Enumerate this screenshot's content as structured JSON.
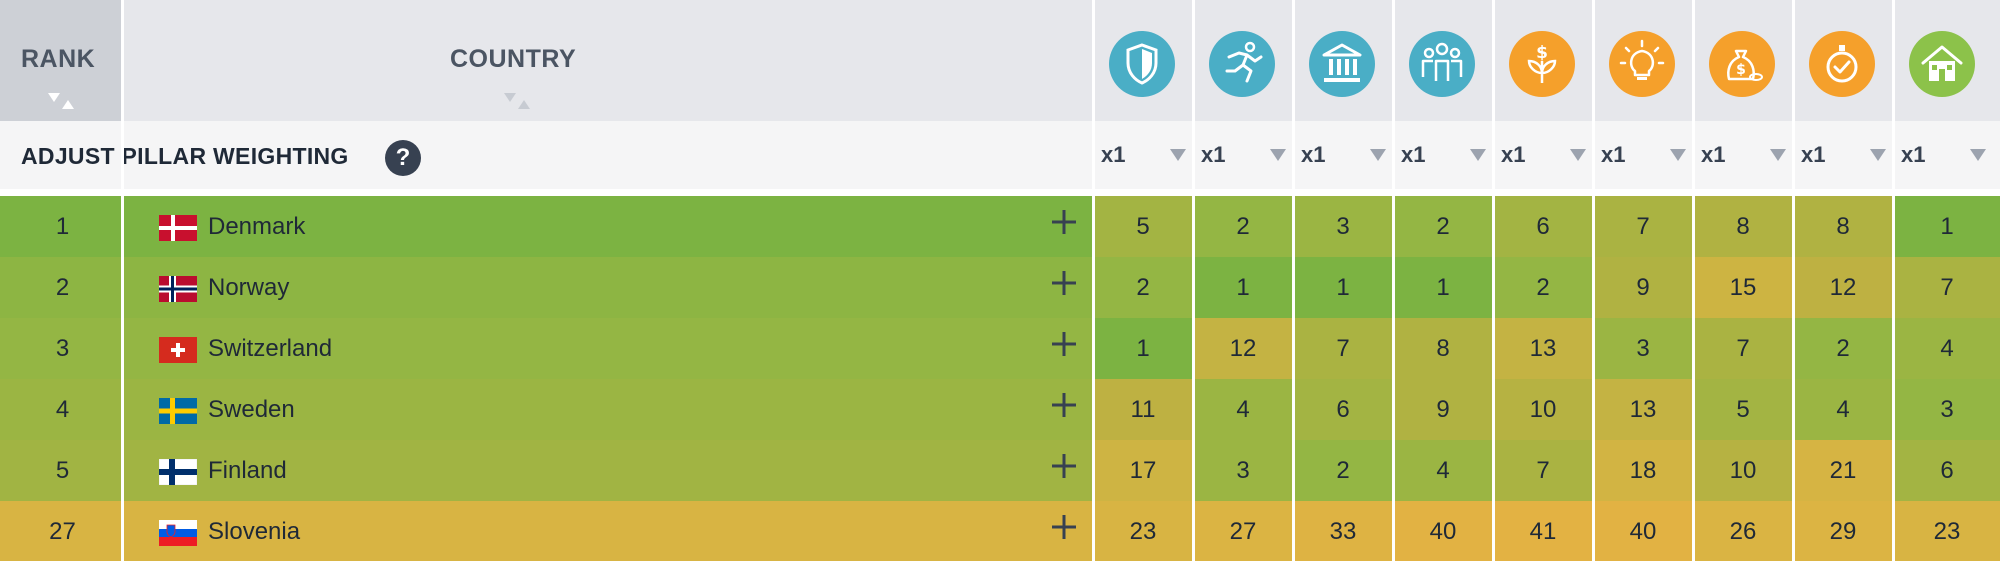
{
  "header": {
    "rank_label": "RANK",
    "country_label": "COUNTRY",
    "pillars": [
      {
        "icon": "shield-icon",
        "color": "#4aaec6"
      },
      {
        "icon": "running-person-icon",
        "color": "#4aaec6"
      },
      {
        "icon": "government-building-icon",
        "color": "#4aaec6"
      },
      {
        "icon": "people-group-icon",
        "color": "#4aaec6"
      },
      {
        "icon": "money-plant-icon",
        "color": "#f5a02b"
      },
      {
        "icon": "lightbulb-icon",
        "color": "#f5a02b"
      },
      {
        "icon": "money-bag-icon",
        "color": "#f5a02b"
      },
      {
        "icon": "stopwatch-check-icon",
        "color": "#f5a02b"
      },
      {
        "icon": "house-icon",
        "color": "#8cc24a"
      }
    ]
  },
  "weighting": {
    "label": "ADJUST PILLAR WEIGHTING",
    "help": "?",
    "multipliers": [
      "x1",
      "x1",
      "x1",
      "x1",
      "x1",
      "x1",
      "x1",
      "x1",
      "x1"
    ]
  },
  "rows": [
    {
      "rank": "1",
      "country": "Denmark",
      "flag": "denmark",
      "color": "#7cb342",
      "scores": [
        "5",
        "2",
        "3",
        "2",
        "6",
        "7",
        "8",
        "8",
        "1"
      ],
      "colors": [
        "#a3b443",
        "#94b644",
        "#9bb543",
        "#94b644",
        "#a3b443",
        "#aab342",
        "#b0b242",
        "#b0b242",
        "#7cb342"
      ]
    },
    {
      "rank": "2",
      "country": "Norway",
      "flag": "norway",
      "color": "#8db543",
      "scores": [
        "2",
        "1",
        "1",
        "1",
        "2",
        "9",
        "15",
        "12",
        "7"
      ],
      "colors": [
        "#94b644",
        "#7cb342",
        "#7cb342",
        "#7cb342",
        "#94b644",
        "#b0b242",
        "#cdb442",
        "#beb142",
        "#aab342"
      ]
    },
    {
      "rank": "3",
      "country": "Switzerland",
      "flag": "switzerland",
      "color": "#94b644",
      "scores": [
        "1",
        "12",
        "7",
        "8",
        "13",
        "3",
        "7",
        "2",
        "4"
      ],
      "colors": [
        "#7cb342",
        "#c4b343",
        "#aab342",
        "#b0b242",
        "#c4b343",
        "#9bb543",
        "#aab342",
        "#94b644",
        "#9bb543"
      ]
    },
    {
      "rank": "4",
      "country": "Sweden",
      "flag": "sweden",
      "color": "#9bb543",
      "scores": [
        "11",
        "4",
        "6",
        "9",
        "10",
        "13",
        "5",
        "4",
        "3"
      ],
      "colors": [
        "#beb142",
        "#9bb543",
        "#a3b443",
        "#b0b242",
        "#b6b242",
        "#c4b343",
        "#a3b443",
        "#9bb543",
        "#94b644"
      ]
    },
    {
      "rank": "5",
      "country": "Finland",
      "flag": "finland",
      "color": "#a1b443",
      "scores": [
        "17",
        "3",
        "2",
        "4",
        "7",
        "18",
        "10",
        "21",
        "6"
      ],
      "colors": [
        "#ceb443",
        "#9bb543",
        "#94b644",
        "#9bb543",
        "#aab342",
        "#d2b443",
        "#b6b242",
        "#d6b443",
        "#a3b443"
      ]
    },
    {
      "rank": "27",
      "country": "Slovenia",
      "flag": "slovenia",
      "color": "#d8b443",
      "scores": [
        "23",
        "27",
        "33",
        "40",
        "41",
        "40",
        "26",
        "29",
        "23"
      ],
      "colors": [
        "#d8b443",
        "#dbb443",
        "#deb343",
        "#e2b243",
        "#e3b243",
        "#e2b243",
        "#dab443",
        "#dcb443",
        "#d8b443"
      ]
    }
  ]
}
